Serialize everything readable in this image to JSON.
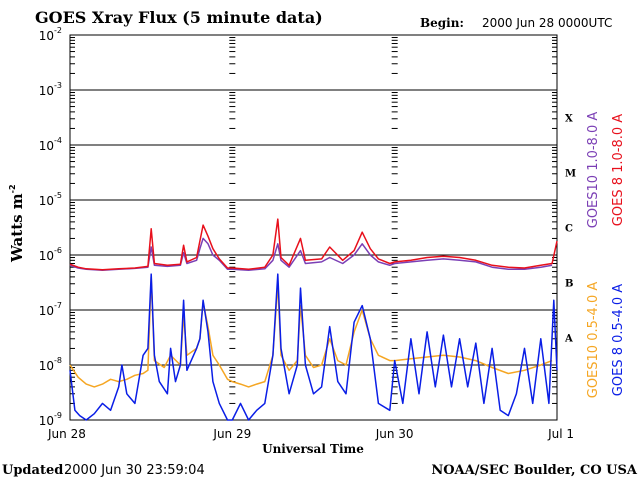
{
  "chart_data": {
    "type": "line",
    "title": "GOES Xray Flux (5 minute data)",
    "begin_label": "Begin:",
    "begin_value": "2000 Jun 28 0000UTC",
    "ylabel": "Watts m",
    "ylabel_sup": "-2",
    "xlabel": "Universal Time",
    "y_scale": "log",
    "ylim": [
      1e-09,
      0.01
    ],
    "y_ticks": [
      {
        "base": "10",
        "exp": "-2",
        "value": 0.01
      },
      {
        "base": "10",
        "exp": "-3",
        "value": 0.001
      },
      {
        "base": "10",
        "exp": "-4",
        "value": 0.0001
      },
      {
        "base": "10",
        "exp": "-5",
        "value": 1e-05
      },
      {
        "base": "10",
        "exp": "-6",
        "value": 1e-06
      },
      {
        "base": "10",
        "exp": "-7",
        "value": 1e-07
      },
      {
        "base": "10",
        "exp": "-8",
        "value": 1e-08
      },
      {
        "base": "10",
        "exp": "-9",
        "value": 1e-09
      }
    ],
    "x_unit": "days since 2000 Jun 28 00:00 UTC",
    "xlim": [
      0,
      3
    ],
    "x_ticks": [
      {
        "label": "Jun 28",
        "value": 0
      },
      {
        "label": "Jun 29",
        "value": 1
      },
      {
        "label": "Jun 30",
        "value": 2
      },
      {
        "label": "Jul 1",
        "value": 3
      }
    ],
    "flare_classes": [
      {
        "label": "X",
        "value": 0.0001
      },
      {
        "label": "M",
        "value": 1e-05
      },
      {
        "label": "C",
        "value": 1e-06
      },
      {
        "label": "B",
        "value": 1e-07
      },
      {
        "label": "A",
        "value": 1e-08
      }
    ],
    "gridlines": "horizontal at each decade",
    "series": [
      {
        "name": "GOES10 1.0-8.0 A",
        "color": "#7b3fb5",
        "points": [
          [
            0.0,
            6.5e-07
          ],
          [
            0.05,
            5.8e-07
          ],
          [
            0.1,
            5.5e-07
          ],
          [
            0.2,
            5.3e-07
          ],
          [
            0.3,
            5.5e-07
          ],
          [
            0.4,
            5.7e-07
          ],
          [
            0.48,
            6e-07
          ],
          [
            0.5,
            1.4e-06
          ],
          [
            0.52,
            6.5e-07
          ],
          [
            0.6,
            6.2e-07
          ],
          [
            0.68,
            6.5e-07
          ],
          [
            0.7,
            1.1e-06
          ],
          [
            0.72,
            7e-07
          ],
          [
            0.78,
            8e-07
          ],
          [
            0.8,
            1.3e-06
          ],
          [
            0.82,
            2e-06
          ],
          [
            0.85,
            1.6e-06
          ],
          [
            0.88,
            1e-06
          ],
          [
            0.92,
            8e-07
          ],
          [
            0.97,
            5.5e-07
          ],
          [
            1.0,
            5.5e-07
          ],
          [
            1.1,
            5.3e-07
          ],
          [
            1.2,
            5.6e-07
          ],
          [
            1.25,
            8e-07
          ],
          [
            1.28,
            1.6e-06
          ],
          [
            1.3,
            8e-07
          ],
          [
            1.35,
            6e-07
          ],
          [
            1.42,
            1.2e-06
          ],
          [
            1.45,
            7e-07
          ],
          [
            1.55,
            7.5e-07
          ],
          [
            1.6,
            9e-07
          ],
          [
            1.68,
            7e-07
          ],
          [
            1.75,
            1e-06
          ],
          [
            1.8,
            1.6e-06
          ],
          [
            1.85,
            1e-06
          ],
          [
            1.9,
            7.5e-07
          ],
          [
            1.97,
            6.5e-07
          ],
          [
            2.0,
            7e-07
          ],
          [
            2.1,
            7.5e-07
          ],
          [
            2.2,
            8e-07
          ],
          [
            2.3,
            8.5e-07
          ],
          [
            2.4,
            8e-07
          ],
          [
            2.5,
            7.5e-07
          ],
          [
            2.6,
            6e-07
          ],
          [
            2.7,
            5.5e-07
          ],
          [
            2.8,
            5.5e-07
          ],
          [
            2.9,
            6e-07
          ],
          [
            2.97,
            6.5e-07
          ]
        ]
      },
      {
        "name": "GOES 8 1.0-8.0 A",
        "color": "#e8101c",
        "points": [
          [
            0.0,
            6.8e-07
          ],
          [
            0.05,
            6e-07
          ],
          [
            0.1,
            5.6e-07
          ],
          [
            0.2,
            5.4e-07
          ],
          [
            0.3,
            5.6e-07
          ],
          [
            0.4,
            5.8e-07
          ],
          [
            0.48,
            6.2e-07
          ],
          [
            0.5,
            3e-06
          ],
          [
            0.52,
            7e-07
          ],
          [
            0.6,
            6.5e-07
          ],
          [
            0.68,
            6.8e-07
          ],
          [
            0.7,
            1.5e-06
          ],
          [
            0.72,
            7.5e-07
          ],
          [
            0.78,
            9e-07
          ],
          [
            0.8,
            1.8e-06
          ],
          [
            0.82,
            3.5e-06
          ],
          [
            0.85,
            2.2e-06
          ],
          [
            0.88,
            1.3e-06
          ],
          [
            0.92,
            8.5e-07
          ],
          [
            0.97,
            5.8e-07
          ],
          [
            1.0,
            5.8e-07
          ],
          [
            1.1,
            5.5e-07
          ],
          [
            1.2,
            6e-07
          ],
          [
            1.25,
            1e-06
          ],
          [
            1.28,
            4.5e-06
          ],
          [
            1.3,
            9e-07
          ],
          [
            1.35,
            6.5e-07
          ],
          [
            1.42,
            2e-06
          ],
          [
            1.45,
            8e-07
          ],
          [
            1.55,
            8.5e-07
          ],
          [
            1.6,
            1.4e-06
          ],
          [
            1.68,
            8e-07
          ],
          [
            1.75,
            1.2e-06
          ],
          [
            1.8,
            2.6e-06
          ],
          [
            1.85,
            1.3e-06
          ],
          [
            1.9,
            8.5e-07
          ],
          [
            1.97,
            7e-07
          ],
          [
            2.0,
            7.5e-07
          ],
          [
            2.1,
            8e-07
          ],
          [
            2.2,
            9e-07
          ],
          [
            2.3,
            9.5e-07
          ],
          [
            2.4,
            9e-07
          ],
          [
            2.5,
            8e-07
          ],
          [
            2.6,
            6.5e-07
          ],
          [
            2.7,
            6e-07
          ],
          [
            2.8,
            5.8e-07
          ],
          [
            2.9,
            6.5e-07
          ],
          [
            2.97,
            7e-07
          ],
          [
            3.0,
            1.8e-06
          ]
        ]
      },
      {
        "name": "GOES10 0.5-4.0 A",
        "color": "#f5a623",
        "points": [
          [
            0.0,
            1e-08
          ],
          [
            0.05,
            6e-09
          ],
          [
            0.1,
            4.5e-09
          ],
          [
            0.15,
            4e-09
          ],
          [
            0.2,
            4.5e-09
          ],
          [
            0.25,
            5.5e-09
          ],
          [
            0.3,
            5e-09
          ],
          [
            0.35,
            5.5e-09
          ],
          [
            0.4,
            6.5e-09
          ],
          [
            0.45,
            7e-09
          ],
          [
            0.48,
            8e-09
          ],
          [
            0.5,
            4e-07
          ],
          [
            0.52,
            1.2e-08
          ],
          [
            0.58,
            9e-09
          ],
          [
            0.62,
            1.5e-08
          ],
          [
            0.68,
            1e-08
          ],
          [
            0.7,
            8e-08
          ],
          [
            0.72,
            1.5e-08
          ],
          [
            0.78,
            2e-08
          ],
          [
            0.8,
            3e-08
          ],
          [
            0.82,
            1.4e-07
          ],
          [
            0.85,
            5e-08
          ],
          [
            0.88,
            1.5e-08
          ],
          [
            0.92,
            1e-08
          ],
          [
            0.97,
            5.5e-09
          ],
          [
            1.0,
            5e-09
          ],
          [
            1.05,
            4.5e-09
          ],
          [
            1.1,
            4e-09
          ],
          [
            1.15,
            4.5e-09
          ],
          [
            1.2,
            5e-09
          ],
          [
            1.25,
            1.5e-08
          ],
          [
            1.28,
            3e-07
          ],
          [
            1.3,
            1.5e-08
          ],
          [
            1.35,
            8e-09
          ],
          [
            1.4,
            1.2e-08
          ],
          [
            1.42,
            1.2e-07
          ],
          [
            1.45,
            1.5e-08
          ],
          [
            1.5,
            9e-09
          ],
          [
            1.55,
            1e-08
          ],
          [
            1.6,
            3e-08
          ],
          [
            1.65,
            1.2e-08
          ],
          [
            1.7,
            1e-08
          ],
          [
            1.75,
            4e-08
          ],
          [
            1.8,
            1e-07
          ],
          [
            1.85,
            3e-08
          ],
          [
            1.9,
            1.5e-08
          ],
          [
            1.97,
            1.2e-08
          ],
          [
            2.0,
            1.2e-08
          ],
          [
            2.1,
            1.3e-08
          ],
          [
            2.2,
            1.4e-08
          ],
          [
            2.3,
            1.5e-08
          ],
          [
            2.4,
            1.4e-08
          ],
          [
            2.5,
            1.2e-08
          ],
          [
            2.6,
            9e-09
          ],
          [
            2.7,
            7e-09
          ],
          [
            2.8,
            8e-09
          ],
          [
            2.9,
            1e-08
          ],
          [
            2.97,
            1.2e-08
          ]
        ]
      },
      {
        "name": "GOES 8 0.5-4.0 A",
        "color": "#0a1ee6",
        "points": [
          [
            0.0,
            8e-09
          ],
          [
            0.03,
            1.5e-09
          ],
          [
            0.06,
            1.2e-09
          ],
          [
            0.1,
            1e-09
          ],
          [
            0.15,
            1.3e-09
          ],
          [
            0.2,
            2e-09
          ],
          [
            0.25,
            1.5e-09
          ],
          [
            0.3,
            4e-09
          ],
          [
            0.32,
            1e-08
          ],
          [
            0.35,
            3e-09
          ],
          [
            0.4,
            2e-09
          ],
          [
            0.45,
            1.5e-08
          ],
          [
            0.48,
            2e-08
          ],
          [
            0.5,
            4.5e-07
          ],
          [
            0.52,
            1.5e-08
          ],
          [
            0.55,
            5e-09
          ],
          [
            0.6,
            3e-09
          ],
          [
            0.62,
            2e-08
          ],
          [
            0.65,
            5e-09
          ],
          [
            0.68,
            1e-08
          ],
          [
            0.7,
            1.5e-07
          ],
          [
            0.72,
            8e-09
          ],
          [
            0.78,
            2e-08
          ],
          [
            0.8,
            3e-08
          ],
          [
            0.82,
            1.5e-07
          ],
          [
            0.85,
            4e-08
          ],
          [
            0.88,
            5e-09
          ],
          [
            0.92,
            2e-09
          ],
          [
            0.97,
            1e-09
          ],
          [
            1.0,
            1e-09
          ],
          [
            1.05,
            2e-09
          ],
          [
            1.1,
            1e-09
          ],
          [
            1.15,
            1.5e-09
          ],
          [
            1.2,
            2e-09
          ],
          [
            1.25,
            1.5e-08
          ],
          [
            1.28,
            4.5e-07
          ],
          [
            1.3,
            2e-08
          ],
          [
            1.35,
            3e-09
          ],
          [
            1.4,
            1e-08
          ],
          [
            1.42,
            2.5e-07
          ],
          [
            1.45,
            1e-08
          ],
          [
            1.5,
            3e-09
          ],
          [
            1.55,
            4e-09
          ],
          [
            1.6,
            5e-08
          ],
          [
            1.65,
            5e-09
          ],
          [
            1.7,
            3e-09
          ],
          [
            1.75,
            6e-08
          ],
          [
            1.8,
            1.2e-07
          ],
          [
            1.85,
            3e-08
          ],
          [
            1.9,
            2e-09
          ],
          [
            1.97,
            1.5e-09
          ],
          [
            2.0,
            1.2e-08
          ],
          [
            2.05,
            2e-09
          ],
          [
            2.1,
            3e-08
          ],
          [
            2.15,
            3e-09
          ],
          [
            2.2,
            4e-08
          ],
          [
            2.25,
            4e-09
          ],
          [
            2.3,
            3.5e-08
          ],
          [
            2.35,
            4e-09
          ],
          [
            2.4,
            3e-08
          ],
          [
            2.45,
            4e-09
          ],
          [
            2.5,
            2.5e-08
          ],
          [
            2.55,
            2e-09
          ],
          [
            2.6,
            2e-08
          ],
          [
            2.65,
            1.5e-09
          ],
          [
            2.7,
            1.2e-09
          ],
          [
            2.75,
            3e-09
          ],
          [
            2.8,
            2e-08
          ],
          [
            2.85,
            2e-09
          ],
          [
            2.9,
            3e-08
          ],
          [
            2.95,
            2e-09
          ],
          [
            2.98,
            1.5e-07
          ],
          [
            3.0,
            8e-09
          ]
        ]
      }
    ]
  },
  "footer": {
    "updated_label": "Updated",
    "updated_value": "2000 Jun 30 23:59:04",
    "credit": "NOAA/SEC Boulder, CO USA"
  }
}
